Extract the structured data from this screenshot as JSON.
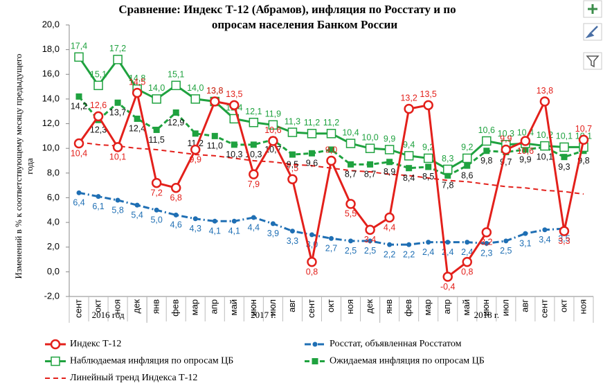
{
  "chart_data": {
    "type": "line",
    "title": [
      "Сравнение: Индекс Т-12 (Абрамов), инфляция по Росстату и по",
      "опросам населения Банком России"
    ],
    "ylabel": [
      "Изменений в % к соответствующему месяцу предыдущего",
      "года"
    ],
    "categories": [
      "сент",
      "окт",
      "ноя",
      "дек",
      "янв",
      "фев",
      "мар",
      "апр",
      "май",
      "июн",
      "июл",
      "авг",
      "сент",
      "окт",
      "ноя",
      "дек",
      "янв",
      "фев",
      "мар",
      "апр",
      "май",
      "июн",
      "июл",
      "авг",
      "сент",
      "окт",
      "ноя"
    ],
    "year_groups": [
      {
        "label": "2016 год",
        "size": 4
      },
      {
        "label": "2017 г.",
        "size": 12
      },
      {
        "label": "2018 г.",
        "size": 11
      }
    ],
    "ylim": [
      -2,
      20
    ],
    "yticks": [
      {
        "value": -2,
        "label": "-2,0"
      },
      {
        "value": 0,
        "label": "0,0"
      },
      {
        "value": 2,
        "label": "2,0"
      },
      {
        "value": 4,
        "label": "4,0"
      },
      {
        "value": 6,
        "label": "6,0"
      },
      {
        "value": 8,
        "label": "8,0"
      },
      {
        "value": 10,
        "label": "10,0"
      },
      {
        "value": 12,
        "label": "12,0"
      },
      {
        "value": 14,
        "label": "14,0"
      },
      {
        "value": 16,
        "label": "16,0"
      },
      {
        "value": 18,
        "label": "18,0"
      },
      {
        "value": 20,
        "label": "20,0"
      }
    ],
    "grid": false,
    "series": [
      {
        "name": "Индекс Т-12",
        "color": "#e3201b",
        "label_color": "#e3201b",
        "marker": "circle",
        "dash": "none",
        "label_pos": "auto",
        "legend": 0,
        "values": [
          10.4,
          12.6,
          10.1,
          14.5,
          7.2,
          6.8,
          9.9,
          13.8,
          13.5,
          7.9,
          10.6,
          7.5,
          0.8,
          9.0,
          5.5,
          3.4,
          4.4,
          13.2,
          13.5,
          -0.4,
          0.8,
          3.2,
          9.9,
          10.6,
          13.8,
          3.3,
          10.7
        ],
        "value_labels": [
          "10,4",
          "12,6",
          "10,1",
          "14,5",
          "7,2",
          "6,8",
          "9,9",
          "13,8",
          "13,5",
          "7,9",
          "10,6",
          "7,5",
          "0,8",
          "9,0",
          "5,5",
          "3,4",
          "4,4",
          "13,2",
          "13,5",
          "-0,4",
          "0,8",
          "3,2",
          "9,9",
          "10,6",
          "13,8",
          "3,3",
          "10,7"
        ]
      },
      {
        "name": "Росстат, объявленная Росстатом",
        "color": "#1f6fb4",
        "label_color": "#1f6fb4",
        "marker": "dot",
        "dash": "dashdot",
        "label_pos": "below",
        "legend": 1,
        "values": [
          6.4,
          6.1,
          5.8,
          5.4,
          5.0,
          4.6,
          4.3,
          4.1,
          4.1,
          4.4,
          3.9,
          3.3,
          3.0,
          2.7,
          2.5,
          2.5,
          2.2,
          2.2,
          2.4,
          2.4,
          2.4,
          2.3,
          2.5,
          3.1,
          3.4,
          3.5,
          null
        ],
        "value_labels": [
          "6,4",
          "6,1",
          "5,8",
          "5,4",
          "5,0",
          "4,6",
          "4,3",
          "4,1",
          "4,1",
          "4,4",
          "3,9",
          "3,3",
          "3,0",
          "2,7",
          "2,5",
          "2,5",
          "2,2",
          "2,2",
          "2,4",
          "2,4",
          "2,4",
          "2,3",
          "2,5",
          "3,1",
          "3,4",
          "3,5",
          null
        ]
      },
      {
        "name": "Наблюдаемая инфляция по опросам ЦБ",
        "color": "#1fa23f",
        "label_color": "#1fa23f",
        "marker": "square-open",
        "dash": "none",
        "label_pos": "above",
        "legend": 0,
        "values": [
          17.4,
          15.1,
          17.2,
          14.8,
          14.0,
          15.1,
          14.0,
          13.8,
          12.4,
          12.1,
          11.9,
          11.3,
          11.2,
          11.2,
          10.4,
          10.0,
          9.9,
          9.4,
          9.2,
          8.3,
          9.2,
          10.6,
          10.3,
          10.4,
          10.2,
          10.1,
          10.1
        ],
        "value_labels": [
          "17,4",
          "15,1",
          "17,2",
          "14,8",
          "14,0",
          "15,1",
          "14,0",
          "13,8",
          "12,4",
          "12,1",
          "11,9",
          "11,3",
          "11,2",
          "11,2",
          "10,4",
          "10,0",
          "9,9",
          "9,4",
          "9,2",
          "8,3",
          "9,2",
          "10,6",
          "10,3",
          "10,4",
          "10,2",
          "10,1",
          "10,1"
        ]
      },
      {
        "name": "Ожидаемая инфляция по опросам ЦБ",
        "color": "#1fa23f",
        "label_color": "#111111",
        "marker": "square",
        "dash": "dashed",
        "label_pos": "below",
        "legend": 1,
        "values": [
          14.2,
          12.3,
          13.7,
          12.4,
          11.5,
          12.9,
          11.2,
          11.0,
          10.3,
          10.3,
          10.7,
          9.5,
          9.6,
          9.9,
          8.7,
          8.7,
          8.9,
          8.4,
          8.5,
          7.8,
          8.6,
          9.8,
          9.7,
          9.9,
          10.1,
          9.3,
          9.8
        ],
        "value_labels": [
          "14,2",
          "12,3",
          "13,7",
          "12,4",
          "11,5",
          "12,9",
          "11,2",
          "11,0",
          "10,3",
          "10,3",
          "10,7",
          "9,5",
          "9,6",
          null,
          "8,7",
          "8,7",
          "8,9",
          "8,4",
          "8,5",
          "7,8",
          "8,6",
          "9,8",
          "9,7",
          "9,9",
          "10,1",
          "9,3",
          "9,8"
        ]
      },
      {
        "name": "Линейный тренд Индекса Т-12",
        "color": "#e3201b",
        "marker": "none",
        "dash": "dashed-thin",
        "legend": 0,
        "values": [
          10.5,
          10.3,
          10.2,
          10.0,
          9.9,
          9.7,
          9.5,
          9.4,
          9.2,
          9.0,
          8.9,
          8.7,
          8.6,
          8.4,
          8.2,
          8.1,
          7.9,
          7.8,
          7.6,
          7.4,
          7.3,
          7.1,
          6.9,
          6.8,
          6.6,
          6.5,
          6.3
        ]
      }
    ]
  }
}
